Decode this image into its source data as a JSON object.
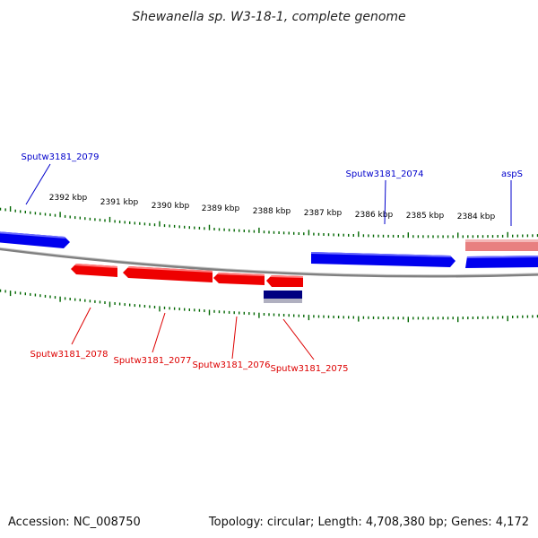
{
  "title": "Shewanella sp. W3-18-1, complete genome",
  "footer": {
    "accession": "Accession: NC_008750",
    "summary": "Topology: circular; Length: 4,708,380 bp; Genes: 4,172"
  },
  "colors": {
    "forward_gene": "#0000ee",
    "reverse_gene": "#ee0000",
    "rna_gene": "#000080",
    "pseudo_gene": "#e88080",
    "backbone": "#888888",
    "ticks": "#006600"
  },
  "kbp_labels": [
    "2392 kbp",
    "2391 kbp",
    "2390 kbp",
    "2389 kbp",
    "2388 kbp",
    "2387 kbp",
    "2386 kbp",
    "2385 kbp",
    "2384 kbp"
  ],
  "gene_labels": {
    "forward": [
      "Sputw3181_2079",
      "Sputw3181_2074",
      "aspS"
    ],
    "reverse": [
      "Sputw3181_2078",
      "Sputw3181_2077",
      "Sputw3181_2076",
      "Sputw3181_2075"
    ]
  }
}
